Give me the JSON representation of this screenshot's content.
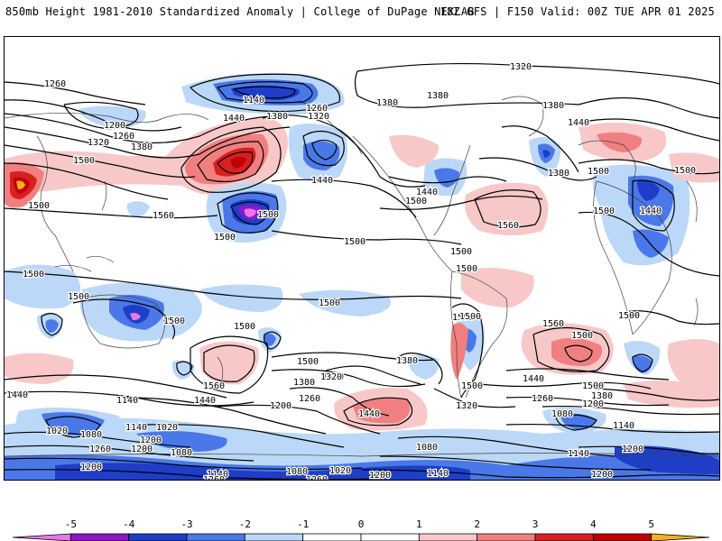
{
  "header": {
    "left": "850mb Height 1981-2010 Standardized Anomaly | College of DuPage NEXLAB",
    "right": "18Z GFS | F150 Valid: 00Z TUE APR 01 2025"
  },
  "colors": {
    "neg5": "#e878e8",
    "neg4": "#8a18c8",
    "neg3": "#1e3ec8",
    "neg2": "#4a78e8",
    "neg1": "#bcd8f8",
    "zero": "#ffffff",
    "pos1": "#f8c8c8",
    "pos2": "#f08080",
    "pos3": "#d82020",
    "pos4": "#c00000",
    "pos5": "#f8b020",
    "contour": "#000000",
    "land": "#404040"
  },
  "colorbar": {
    "ticks": [
      "-5",
      "-4",
      "-3",
      "-2",
      "-1",
      "0",
      "1",
      "2",
      "3",
      "4",
      "5"
    ]
  },
  "contour_labels": [
    {
      "id": "l1320-n",
      "text": "1320"
    },
    {
      "id": "l1260-nw",
      "text": "1260"
    },
    {
      "id": "l1140-np",
      "text": "1140"
    },
    {
      "id": "l1260-np",
      "text": "1260"
    },
    {
      "id": "l1320-np",
      "text": "1320"
    },
    {
      "id": "l1380-np",
      "text": "1380"
    },
    {
      "id": "l1440-np",
      "text": "1440"
    },
    {
      "id": "l1200-wp",
      "text": "1200"
    },
    {
      "id": "l1260-wp",
      "text": "1260"
    },
    {
      "id": "l1320-wp",
      "text": "1320"
    },
    {
      "id": "l1380-wp",
      "text": "1380"
    },
    {
      "id": "l1500-asia",
      "text": "1500"
    },
    {
      "id": "l1500-w",
      "text": "1500"
    },
    {
      "id": "l1560-p",
      "text": "1560"
    },
    {
      "id": "l1500-p1",
      "text": "1500"
    },
    {
      "id": "l1500-p2",
      "text": "1500"
    },
    {
      "id": "l1440-na",
      "text": "1440"
    },
    {
      "id": "l1380-na",
      "text": "1380"
    },
    {
      "id": "l1440-us",
      "text": "1440"
    },
    {
      "id": "l1500-us",
      "text": "1500"
    },
    {
      "id": "l1500-ep",
      "text": "1500"
    },
    {
      "id": "l1380-atl",
      "text": "1380"
    },
    {
      "id": "l1380-eu",
      "text": "1380"
    },
    {
      "id": "l1440-eu",
      "text": "1440"
    },
    {
      "id": "l1500-eu",
      "text": "1500"
    },
    {
      "id": "l1500-af",
      "text": "1500"
    },
    {
      "id": "l1500-ne",
      "text": "1500"
    },
    {
      "id": "l1560-atl",
      "text": "1560"
    },
    {
      "id": "l1500-sa1",
      "text": "1500"
    },
    {
      "id": "l1500-sa2",
      "text": "1500"
    },
    {
      "id": "l1500-io",
      "text": "1500"
    },
    {
      "id": "l1440-as",
      "text": "1440"
    },
    {
      "id": "l1500-wio",
      "text": "1500"
    },
    {
      "id": "l1500-ind",
      "text": "1500"
    },
    {
      "id": "l1500-aus1",
      "text": "1500"
    },
    {
      "id": "l1500-aus2",
      "text": "1500"
    },
    {
      "id": "l1500-sp",
      "text": "1500"
    },
    {
      "id": "l1500-sp2",
      "text": "1500"
    },
    {
      "id": "l1500-sp3",
      "text": "1500"
    },
    {
      "id": "l1560-nz",
      "text": "1560"
    },
    {
      "id": "l1320-sp",
      "text": "1320"
    },
    {
      "id": "l1260-sp",
      "text": "1260"
    },
    {
      "id": "l1140-sp",
      "text": "1140"
    },
    {
      "id": "l1440-sp",
      "text": "1440"
    },
    {
      "id": "l1200-sp",
      "text": "1200"
    },
    {
      "id": "l1440-w",
      "text": "1440"
    },
    {
      "id": "l1020-so",
      "text": "1020"
    },
    {
      "id": "l1080-so",
      "text": "1080"
    },
    {
      "id": "l1260-so",
      "text": "1260"
    },
    {
      "id": "l1140-so2",
      "text": "1140"
    },
    {
      "id": "l1020-so2",
      "text": "1020"
    },
    {
      "id": "l1200-so",
      "text": "1200"
    },
    {
      "id": "l1080-so2",
      "text": "1080"
    },
    {
      "id": "l1200-sow",
      "text": "1200"
    },
    {
      "id": "l1140-so3",
      "text": "1140"
    },
    {
      "id": "l1260-so3",
      "text": "1260"
    },
    {
      "id": "l1080-so3",
      "text": "1080"
    },
    {
      "id": "l1020-so3",
      "text": "1020"
    },
    {
      "id": "l1200-so3",
      "text": "1200"
    },
    {
      "id": "l1140-so4",
      "text": "1140"
    },
    {
      "id": "l1080-so4",
      "text": "1080"
    },
    {
      "id": "l1260-so4",
      "text": "1260"
    },
    {
      "id": "l1200-so4",
      "text": "1200"
    },
    {
      "id": "l1380-sp2",
      "text": "1380"
    },
    {
      "id": "l1320-sp2",
      "text": "1320"
    },
    {
      "id": "l1440-sp2",
      "text": "1440"
    },
    {
      "id": "l1320-sa",
      "text": "1320"
    },
    {
      "id": "l1380-sa",
      "text": "1380"
    },
    {
      "id": "l1500-sa3",
      "text": "1500"
    },
    {
      "id": "l1440-sat",
      "text": "1440"
    },
    {
      "id": "l1500-sat",
      "text": "1500"
    },
    {
      "id": "l1260-sat",
      "text": "1260"
    },
    {
      "id": "l1200-sat",
      "text": "1200"
    },
    {
      "id": "l1080-sat",
      "text": "1080"
    },
    {
      "id": "l1380-sio",
      "text": "1380"
    },
    {
      "id": "l1140-sio",
      "text": "1140"
    },
    {
      "id": "l1200-sio",
      "text": "1200"
    },
    {
      "id": "l1140-sio2",
      "text": "1140"
    },
    {
      "id": "l1200-sio2",
      "text": "1200"
    },
    {
      "id": "l1500-mad",
      "text": "1500"
    },
    {
      "id": "l1560-sio",
      "text": "1560"
    },
    {
      "id": "l1500-ei",
      "text": "1500"
    },
    {
      "id": "l1380-ne",
      "text": "1380"
    }
  ]
}
